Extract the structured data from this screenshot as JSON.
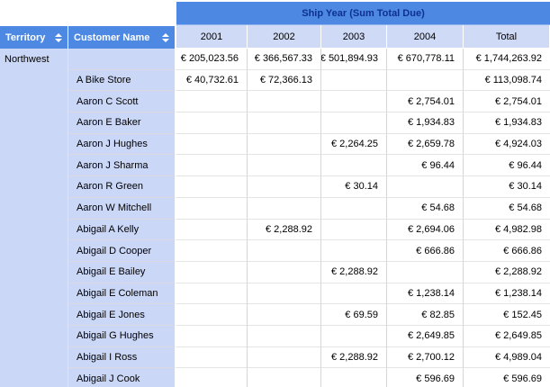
{
  "header": {
    "group_title": "Ship Year (Sum Total Due)",
    "territory_label": "Territory",
    "customer_label": "Customer Name",
    "columns": [
      "2001",
      "2002",
      "2003",
      "2004",
      "Total"
    ]
  },
  "icons": {
    "territory_sort": "sort-up-down-icon",
    "customer_sort": "sort-up-down-icon"
  },
  "colors": {
    "header_blue": "#4d88e3",
    "header_text": "#ffffff",
    "group_title_text": "#0d3190",
    "column_header_bg": "#cfdaf7",
    "row_label_bg": "#cbd7f7",
    "grid_line_vertical": "#d6d6d6",
    "grid_line_horizontal": "#e4e4e4",
    "data_bg": "#ffffff"
  },
  "table": {
    "rows": [
      {
        "territory": "Northwest",
        "customer": "",
        "values": [
          "€ 205,023.56",
          "€ 366,567.33",
          "€ 501,894.93",
          "€ 670,778.11",
          "€ 1,744,263.92"
        ]
      },
      {
        "territory": "",
        "customer": "A Bike Store",
        "values": [
          "€ 40,732.61",
          "€ 72,366.13",
          "",
          "",
          "€ 113,098.74"
        ]
      },
      {
        "territory": "",
        "customer": "Aaron C Scott",
        "values": [
          "",
          "",
          "",
          "€ 2,754.01",
          "€ 2,754.01"
        ]
      },
      {
        "territory": "",
        "customer": "Aaron E Baker",
        "values": [
          "",
          "",
          "",
          "€ 1,934.83",
          "€ 1,934.83"
        ]
      },
      {
        "territory": "",
        "customer": "Aaron J Hughes",
        "values": [
          "",
          "",
          "€ 2,264.25",
          "€ 2,659.78",
          "€ 4,924.03"
        ]
      },
      {
        "territory": "",
        "customer": "Aaron J Sharma",
        "values": [
          "",
          "",
          "",
          "€ 96.44",
          "€ 96.44"
        ]
      },
      {
        "territory": "",
        "customer": "Aaron R Green",
        "values": [
          "",
          "",
          "€ 30.14",
          "",
          "€ 30.14"
        ]
      },
      {
        "territory": "",
        "customer": "Aaron W Mitchell",
        "values": [
          "",
          "",
          "",
          "€ 54.68",
          "€ 54.68"
        ]
      },
      {
        "territory": "",
        "customer": "Abigail A Kelly",
        "values": [
          "",
          "€ 2,288.92",
          "",
          "€ 2,694.06",
          "€ 4,982.98"
        ]
      },
      {
        "territory": "",
        "customer": "Abigail D Cooper",
        "values": [
          "",
          "",
          "",
          "€ 666.86",
          "€ 666.86"
        ]
      },
      {
        "territory": "",
        "customer": "Abigail E Bailey",
        "values": [
          "",
          "",
          "€ 2,288.92",
          "",
          "€ 2,288.92"
        ]
      },
      {
        "territory": "",
        "customer": "Abigail E Coleman",
        "values": [
          "",
          "",
          "",
          "€ 1,238.14",
          "€ 1,238.14"
        ]
      },
      {
        "territory": "",
        "customer": "Abigail E Jones",
        "values": [
          "",
          "",
          "€ 69.59",
          "€ 82.85",
          "€ 152.45"
        ]
      },
      {
        "territory": "",
        "customer": "Abigail G Hughes",
        "values": [
          "",
          "",
          "",
          "€ 2,649.85",
          "€ 2,649.85"
        ]
      },
      {
        "territory": "",
        "customer": "Abigail I Ross",
        "values": [
          "",
          "",
          "€ 2,288.92",
          "€ 2,700.12",
          "€ 4,989.04"
        ]
      },
      {
        "territory": "",
        "customer": "Abigail J Cook",
        "values": [
          "",
          "",
          "",
          "€ 596.69",
          "€ 596.69"
        ]
      }
    ]
  }
}
